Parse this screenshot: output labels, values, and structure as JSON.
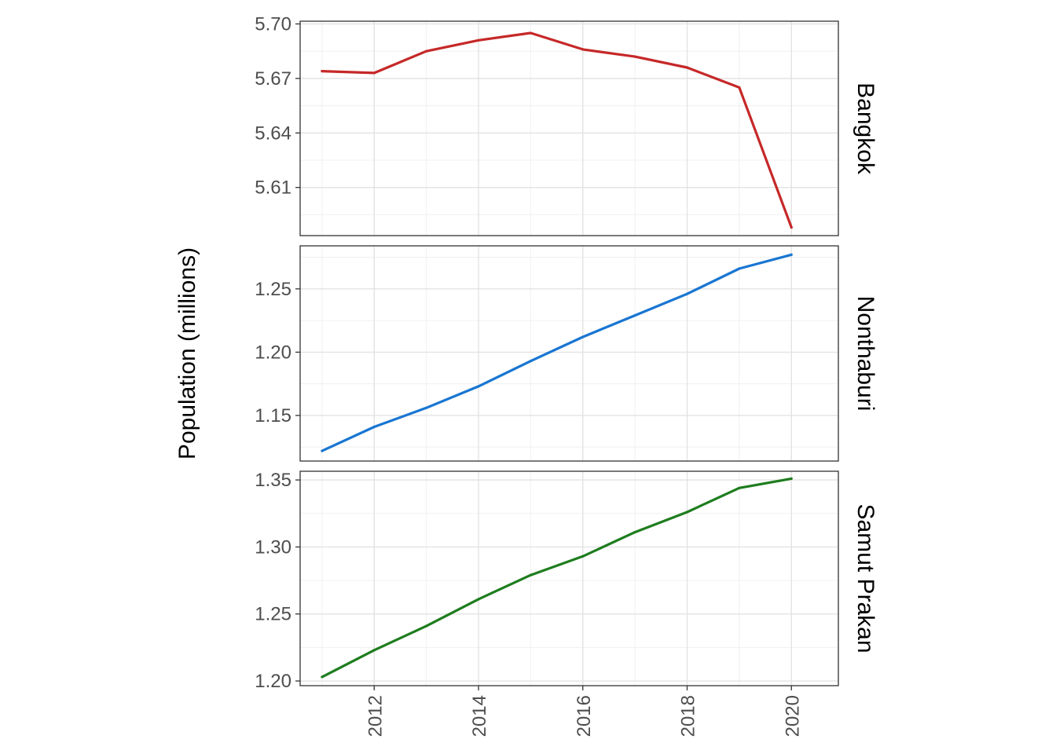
{
  "chart_data": {
    "type": "line",
    "ylabel": "Population (millions)",
    "xlabel": "",
    "x": [
      2011,
      2012,
      2013,
      2014,
      2015,
      2016,
      2017,
      2018,
      2019,
      2020
    ],
    "x_ticks": [
      2012,
      2014,
      2016,
      2018,
      2020
    ],
    "x_tick_labels": [
      "2012",
      "2014",
      "2016",
      "2018",
      "2020"
    ],
    "xlim": [
      2010.58,
      2020.9
    ],
    "facets": [
      {
        "name": "Bangkok",
        "color": "#c62828",
        "values": [
          5.674,
          5.673,
          5.685,
          5.691,
          5.695,
          5.686,
          5.682,
          5.676,
          5.665,
          5.588
        ],
        "ylim": [
          5.5835,
          5.7015
        ],
        "y_ticks": [
          5.61,
          5.64,
          5.67,
          5.7
        ],
        "y_tick_labels": [
          "5.61",
          "5.64",
          "5.67",
          "5.70"
        ]
      },
      {
        "name": "Nonthaburi",
        "color": "#1976d2",
        "values": [
          1.122,
          1.141,
          1.156,
          1.173,
          1.193,
          1.212,
          1.229,
          1.246,
          1.266,
          1.277
        ],
        "ylim": [
          1.114,
          1.284
        ],
        "y_ticks": [
          1.15,
          1.2,
          1.25
        ],
        "y_tick_labels": [
          "1.15",
          "1.20",
          "1.25"
        ]
      },
      {
        "name": "Samut Prakan",
        "color": "#1e7d1e",
        "values": [
          1.203,
          1.223,
          1.241,
          1.261,
          1.279,
          1.293,
          1.311,
          1.326,
          1.344,
          1.351
        ],
        "ylim": [
          1.1965,
          1.3565
        ],
        "y_ticks": [
          1.2,
          1.25,
          1.3,
          1.35
        ],
        "y_tick_labels": [
          "1.20",
          "1.25",
          "1.30",
          "1.35"
        ]
      }
    ]
  }
}
